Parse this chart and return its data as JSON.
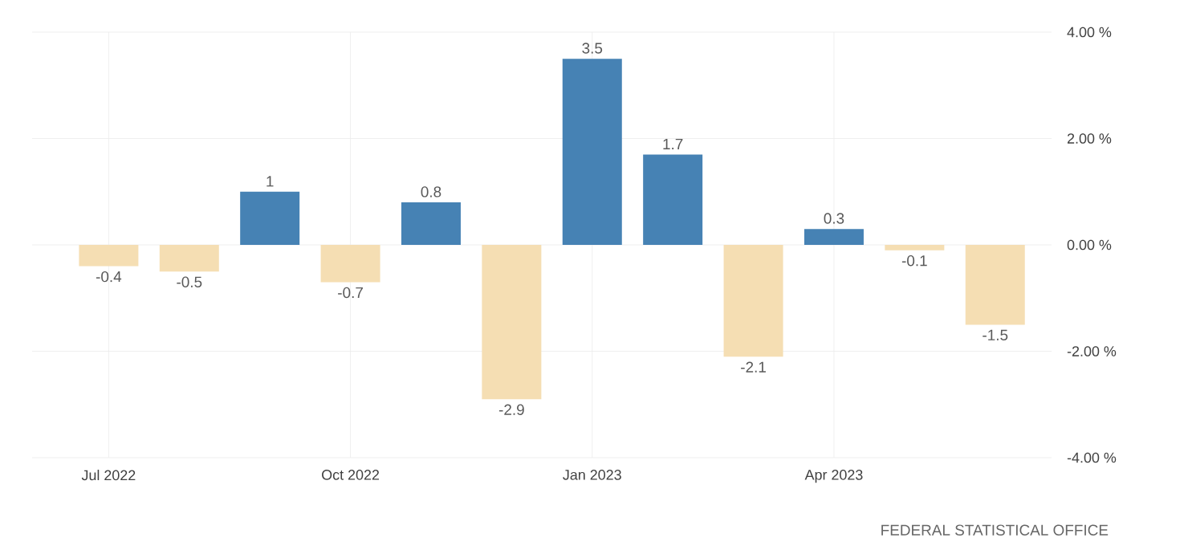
{
  "chart_data": {
    "type": "bar",
    "categories": [
      "Jul 2022",
      null,
      null,
      "Oct 2022",
      null,
      null,
      "Jan 2023",
      null,
      null,
      "Apr 2023",
      null,
      null
    ],
    "values": [
      -0.4,
      -0.5,
      1,
      -0.7,
      0.8,
      -2.9,
      3.5,
      1.7,
      -2.1,
      0.3,
      -0.1,
      -1.5
    ],
    "colors": [
      "#f5deb3",
      "#f5deb3",
      "#4682b4",
      "#f5deb3",
      "#4682b4",
      "#f5deb3",
      "#4682b4",
      "#4682b4",
      "#f5deb3",
      "#4682b4",
      "#f5deb3",
      "#f5deb3"
    ],
    "ylim": [
      -4,
      4
    ],
    "yticks": [
      {
        "value": -4,
        "label": "-4.00 %"
      },
      {
        "value": -2,
        "label": "-2.00 %"
      },
      {
        "value": 0,
        "label": "0.00 %"
      },
      {
        "value": 2,
        "label": "2.00 %"
      },
      {
        "value": 4,
        "label": "4.00 %"
      }
    ],
    "grid": true,
    "data_labels": true,
    "annotations": [
      "FEDERAL STATISTICAL OFFICE"
    ]
  }
}
